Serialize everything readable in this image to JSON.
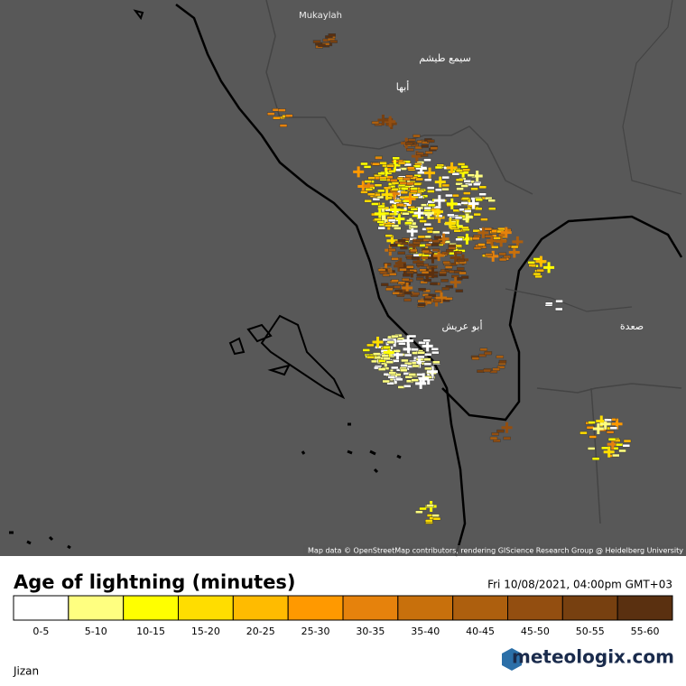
{
  "map": {
    "places": [
      "Mukaylah",
      "سيمع طيشم",
      "أبها",
      "أبو عريش",
      "صعدة"
    ],
    "attribution": "Map data © OpenStreetMap contributors, rendering GIScience Research Group @ Heidelberg University"
  },
  "legend": {
    "title": "Age of lightning (minutes)",
    "timestamp": "Fri 10/08/2021, 04:00pm GMT+03",
    "items": [
      {
        "label": "0-5",
        "color": "#ffffff"
      },
      {
        "label": "5-10",
        "color": "#ffff80"
      },
      {
        "label": "10-15",
        "color": "#ffff00"
      },
      {
        "label": "15-20",
        "color": "#ffdd00"
      },
      {
        "label": "20-25",
        "color": "#ffbb00"
      },
      {
        "label": "25-30",
        "color": "#ff9900"
      },
      {
        "label": "30-35",
        "color": "#e6820c"
      },
      {
        "label": "35-40",
        "color": "#c8700c"
      },
      {
        "label": "40-45",
        "color": "#ad5f0e"
      },
      {
        "label": "45-50",
        "color": "#934e10"
      },
      {
        "label": "50-55",
        "color": "#774010"
      },
      {
        "label": "55-60",
        "color": "#5a3010"
      }
    ]
  },
  "footer": {
    "site": "Jizan",
    "logo": "meteologix.com"
  }
}
